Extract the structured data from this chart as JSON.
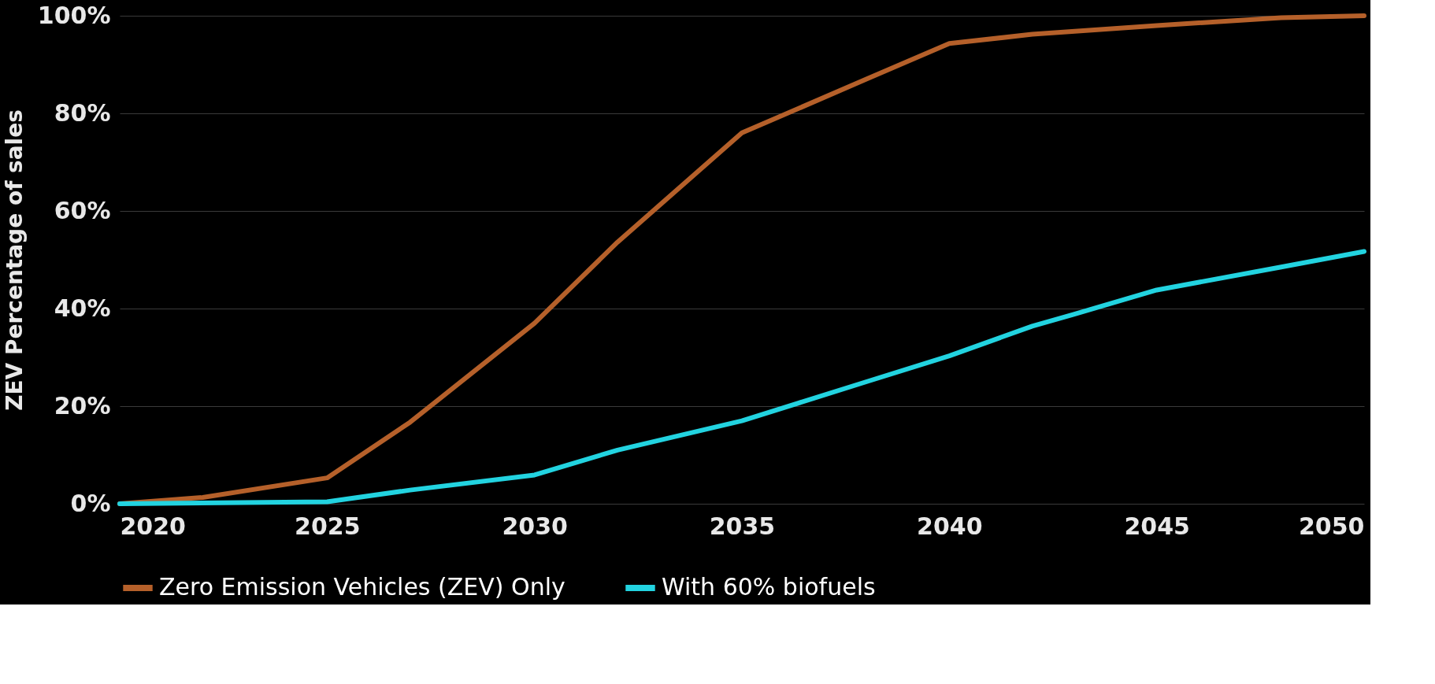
{
  "chart_data": {
    "type": "line",
    "ylabel": "ZEV Percentage of sales",
    "xlim": [
      2020,
      2050
    ],
    "xticks": [
      2020,
      2025,
      2030,
      2035,
      2040,
      2045,
      2050
    ],
    "ylim": [
      0,
      100
    ],
    "yticks": [
      {
        "value": 0,
        "label": "0%"
      },
      {
        "value": 20,
        "label": "20%"
      },
      {
        "value": 40,
        "label": "40%"
      },
      {
        "value": 60,
        "label": "60%"
      },
      {
        "value": 80,
        "label": "80%"
      },
      {
        "value": 100,
        "label": "100%"
      }
    ],
    "grid": "y",
    "legend": "bottom",
    "marker": "none",
    "line_style": "solid",
    "series": [
      {
        "name": "Zero Emission Vehicles (ZEV) Only",
        "color": "#b5602a",
        "x": [
          2020,
          2022,
          2025,
          2027,
          2030,
          2032,
          2035,
          2038,
          2040,
          2042,
          2045,
          2048,
          2050
        ],
        "values": [
          0,
          1.3,
          5.3,
          16.7,
          37,
          53.6,
          76,
          87,
          94.3,
          96.2,
          98,
          99.6,
          100
        ]
      },
      {
        "name": "With 60% biofuels",
        "color": "#22d3e0",
        "x": [
          2020,
          2025,
          2027,
          2030,
          2032,
          2035,
          2038,
          2040,
          2042,
          2043,
          2045,
          2048,
          2050
        ],
        "values": [
          0,
          0.4,
          2.8,
          5.9,
          11,
          17,
          25,
          30.3,
          36.4,
          38.8,
          43.8,
          48.5,
          51.7
        ]
      }
    ]
  }
}
